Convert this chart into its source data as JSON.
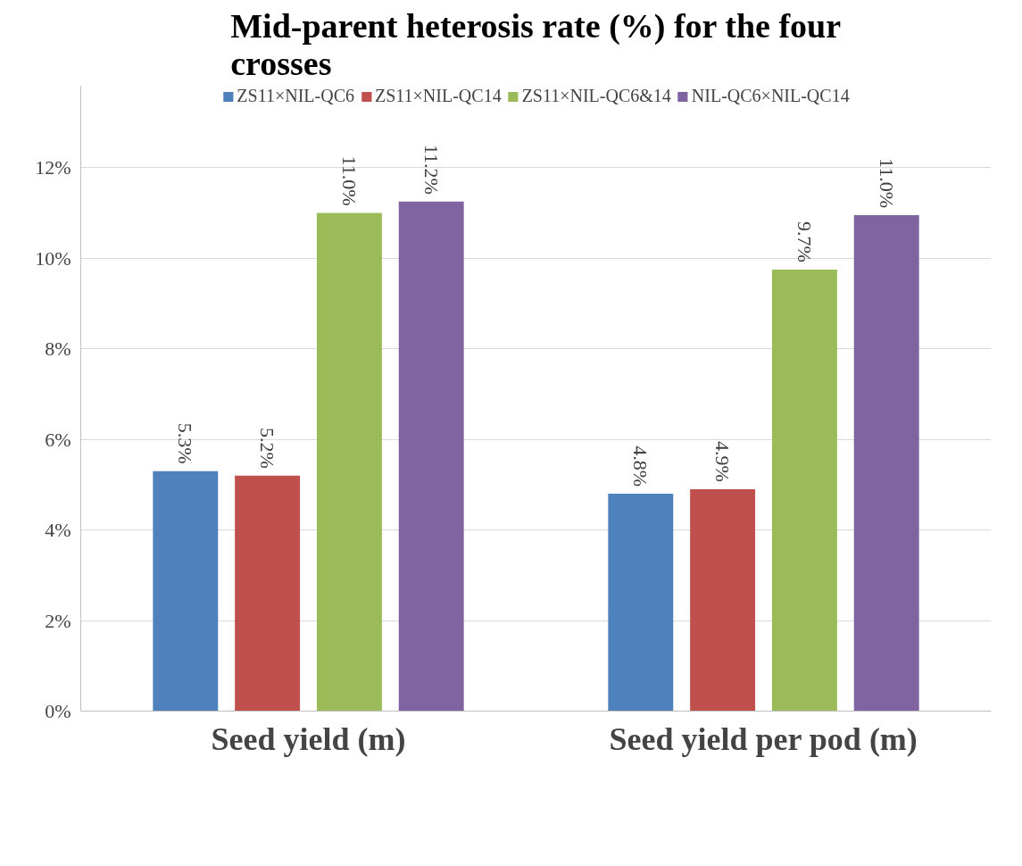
{
  "chart_data": {
    "type": "bar",
    "title": "Mid-parent heterosis rate (%) for the four crosses",
    "categories": [
      "Seed yield (m)",
      "Seed yield per pod (m)"
    ],
    "series": [
      {
        "name": "ZS11×NIL-QC6",
        "color": "#4f81bd",
        "values": [
          5.3,
          4.8
        ],
        "value_labels": [
          "5.3%",
          "4.8%"
        ]
      },
      {
        "name": "ZS11×NIL-QC14",
        "color": "#c0504d",
        "values": [
          5.2,
          4.9
        ],
        "value_labels": [
          "5.2%",
          "4.9%"
        ]
      },
      {
        "name": "ZS11×NIL-QC6&14",
        "color": "#9bbb59",
        "values": [
          11.0,
          9.75
        ],
        "value_labels": [
          "11.0%",
          "9.7%"
        ]
      },
      {
        "name": "NIL-QC6×NIL-QC14",
        "color": "#8064a2",
        "values": [
          11.25,
          10.95
        ],
        "value_labels": [
          "11.2%",
          "11.0%"
        ]
      }
    ],
    "ylim": [
      0,
      13.8
    ],
    "yticks": [
      {
        "value": 0,
        "label": "0%"
      },
      {
        "value": 2,
        "label": "2%"
      },
      {
        "value": 4,
        "label": "4%"
      },
      {
        "value": 6,
        "label": "6%"
      },
      {
        "value": 8,
        "label": "8%"
      },
      {
        "value": 10,
        "label": "10%"
      },
      {
        "value": 12,
        "label": "12%"
      }
    ],
    "grid": "y",
    "legend": "top"
  }
}
